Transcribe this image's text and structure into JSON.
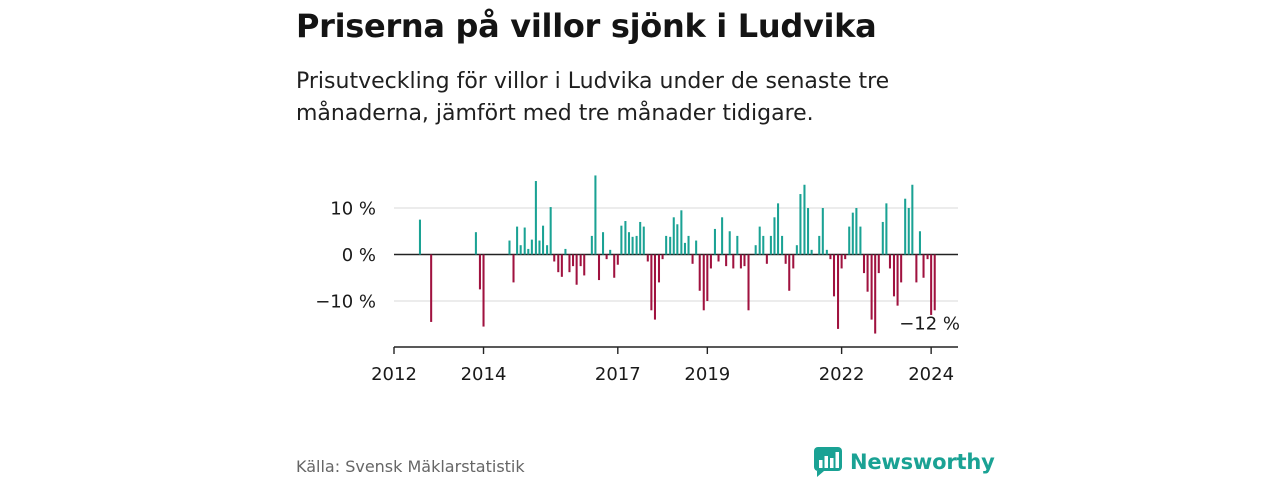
{
  "header": {
    "title": "Priserna på villor sjönk i Ludvika",
    "subtitle": "Prisutveckling för villor i Ludvika under de senaste tre månaderna, jämfört med tre månader tidigare."
  },
  "footer": {
    "source": "Källa: Svensk Mäklarstatistik",
    "logo_text": "Newsworthy"
  },
  "colors": {
    "positive": "#1aa294",
    "negative": "#a0123f",
    "grid": "#d9d9d9",
    "axis": "#222222",
    "logo": "#1aa294"
  },
  "chart_data": {
    "type": "bar",
    "title": "",
    "xlabel": "",
    "ylabel": "",
    "ylim": [
      -20,
      20
    ],
    "y_ticks": [
      10,
      0,
      -10
    ],
    "y_tick_labels": [
      "10 %",
      "0 %",
      "−10 %"
    ],
    "x_ticks": [
      2012,
      2014,
      2017,
      2019,
      2022,
      2024
    ],
    "x_tick_labels": [
      "2012",
      "2014",
      "2017",
      "2019",
      "2022",
      "2024"
    ],
    "x_range": [
      2012,
      2024.6
    ],
    "annotation": {
      "text": "−12 %",
      "value": -12
    },
    "bar_width_months": 0.55,
    "series": [
      {
        "name": "Prisutveckling",
        "x": [
          2012.58,
          2012.83,
          2013.83,
          2013.92,
          2014.0,
          2014.58,
          2014.67,
          2014.75,
          2014.83,
          2014.92,
          2015.0,
          2015.08,
          2015.17,
          2015.25,
          2015.33,
          2015.42,
          2015.5,
          2015.58,
          2015.67,
          2015.75,
          2015.83,
          2015.92,
          2016.0,
          2016.08,
          2016.17,
          2016.25,
          2016.33,
          2016.42,
          2016.5,
          2016.58,
          2016.67,
          2016.75,
          2016.83,
          2016.92,
          2017.0,
          2017.08,
          2017.17,
          2017.25,
          2017.33,
          2017.42,
          2017.5,
          2017.58,
          2017.67,
          2017.75,
          2017.83,
          2017.92,
          2018.0,
          2018.08,
          2018.17,
          2018.25,
          2018.33,
          2018.42,
          2018.5,
          2018.58,
          2018.67,
          2018.75,
          2018.83,
          2018.92,
          2019.0,
          2019.08,
          2019.17,
          2019.25,
          2019.33,
          2019.42,
          2019.5,
          2019.58,
          2019.67,
          2019.75,
          2019.83,
          2019.92,
          2020.0,
          2020.08,
          2020.17,
          2020.25,
          2020.33,
          2020.42,
          2020.5,
          2020.58,
          2020.67,
          2020.75,
          2020.83,
          2020.92,
          2021.0,
          2021.08,
          2021.17,
          2021.25,
          2021.33,
          2021.42,
          2021.5,
          2021.58,
          2021.67,
          2021.75,
          2021.83,
          2021.92,
          2022.0,
          2022.08,
          2022.17,
          2022.25,
          2022.33,
          2022.42,
          2022.5,
          2022.58,
          2022.67,
          2022.75,
          2022.83,
          2022.92,
          2023.0,
          2023.08,
          2023.17,
          2023.25,
          2023.33,
          2023.42,
          2023.5,
          2023.58,
          2023.67,
          2023.75,
          2023.83,
          2023.92,
          2024.0,
          2024.08
        ],
        "values": [
          7.5,
          -14.5,
          4.8,
          -7.5,
          -15.5,
          3.0,
          -6.0,
          6.0,
          2.0,
          5.8,
          1.2,
          3.2,
          15.8,
          3.0,
          6.2,
          2.0,
          10.2,
          -1.5,
          -3.8,
          -4.8,
          1.2,
          -3.8,
          -2.5,
          -6.5,
          -2.5,
          -4.5,
          0.0,
          4.0,
          17.0,
          -5.5,
          4.8,
          -1.0,
          1.0,
          -5.0,
          -2.2,
          6.2,
          7.2,
          4.8,
          3.8,
          4.0,
          7.0,
          6.0,
          -1.5,
          -12.0,
          -14.0,
          -6.0,
          -1.0,
          4.0,
          3.8,
          8.0,
          6.5,
          9.5,
          2.5,
          4.0,
          -2.0,
          3.0,
          -7.8,
          -12.0,
          -10.0,
          -3.0,
          5.5,
          -1.5,
          8.0,
          -2.5,
          5.0,
          -3.0,
          4.0,
          -3.0,
          -2.5,
          -12.0,
          0.0,
          2.0,
          6.0,
          4.0,
          -2.0,
          4.0,
          8.0,
          11.0,
          4.0,
          -2.0,
          -7.8,
          -3.0,
          2.0,
          13.0,
          15.0,
          10.0,
          1.0,
          0.0,
          4.0,
          10.0,
          1.0,
          -1.0,
          -9.0,
          -16.0,
          -3.0,
          -1.0,
          6.0,
          9.0,
          10.0,
          6.0,
          -4.0,
          -8.0,
          -14.0,
          -17.0,
          -4.0,
          7.0,
          11.0,
          -3.0,
          -9.0,
          -11.0,
          -6.0,
          12.0,
          10.0,
          15.0,
          -6.0,
          5.0,
          -5.0,
          -1.0,
          -13.0,
          -12.0
        ]
      }
    ]
  }
}
